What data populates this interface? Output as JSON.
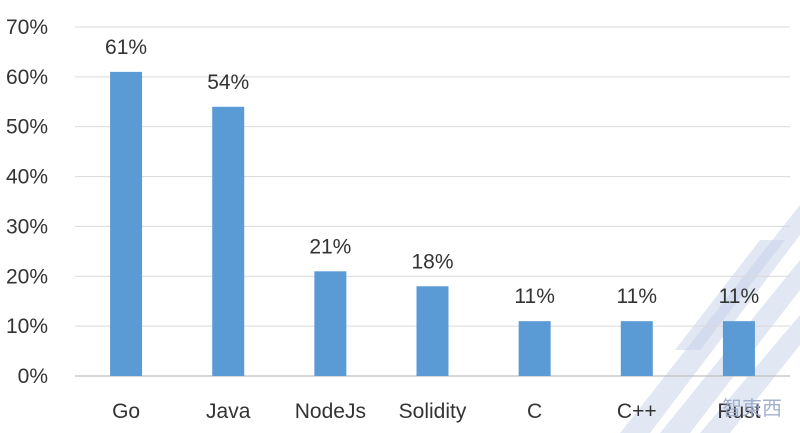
{
  "chart_data": {
    "type": "bar",
    "title": "",
    "xlabel": "",
    "ylabel": "",
    "categories": [
      "Go",
      "Java",
      "NodeJs",
      "Solidity",
      "C",
      "C++",
      "Rust"
    ],
    "values": [
      61,
      54,
      21,
      18,
      11,
      11,
      11
    ],
    "data_labels": [
      "61%",
      "54%",
      "21%",
      "18%",
      "11%",
      "11%",
      "11%"
    ],
    "ylim": [
      0,
      70
    ],
    "yticks": [
      0,
      10,
      20,
      30,
      40,
      50,
      60,
      70
    ],
    "ytick_labels": [
      "0%",
      "10%",
      "20%",
      "30%",
      "40%",
      "50%",
      "60%",
      "70%"
    ],
    "grid": true,
    "legend": "none",
    "colors": {
      "bar": "#5b9bd5"
    }
  },
  "watermark": {
    "text": "智東西"
  }
}
